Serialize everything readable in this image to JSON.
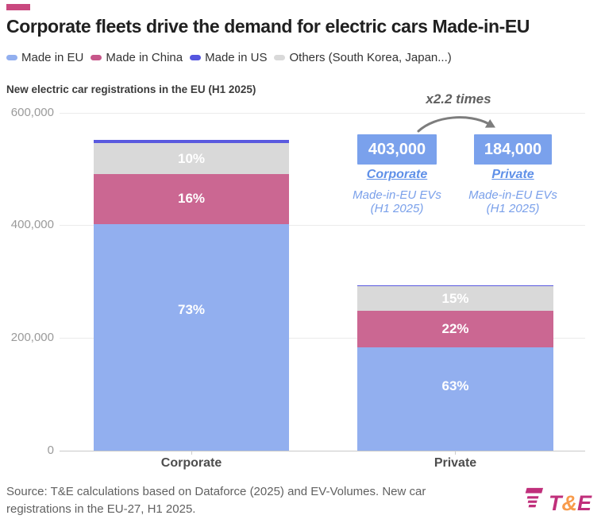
{
  "accent_color": "#C9487F",
  "title": "Corporate fleets drive the demand for electric cars Made-in-EU",
  "legend": {
    "items": [
      {
        "label": "Made in EU",
        "color": "#92AFEF"
      },
      {
        "label": "Made in China",
        "color": "#C7568A"
      },
      {
        "label": "Made in US",
        "color": "#5556DF"
      },
      {
        "label": "Others (South Korea, Japan...)",
        "color": "#D9D9D9"
      }
    ]
  },
  "chart_data": {
    "type": "bar",
    "stacked": true,
    "title": "New electric car registrations in the EU (H1 2025)",
    "categories": [
      "Corporate",
      "Private"
    ],
    "y_ticks": [
      "600,000",
      "400,000",
      "200,000",
      "0"
    ],
    "ylim": [
      0,
      600000
    ],
    "grid": true,
    "series": [
      {
        "name": "Made in EU",
        "color": "#92AFEF",
        "values": [
          403000,
          184000
        ],
        "pct": [
          "73%",
          "63%"
        ]
      },
      {
        "name": "Made in China",
        "color": "#CB6792",
        "values": [
          88000,
          64000
        ],
        "pct": [
          "16%",
          "22%"
        ]
      },
      {
        "name": "Others (South Korea, Japan...)",
        "color": "#D9D9D9",
        "values": [
          55000,
          44000
        ],
        "pct": [
          "10%",
          "15%"
        ]
      },
      {
        "name": "Made in US",
        "color": "#5A5ADF",
        "values": [
          6000,
          1500
        ],
        "pct": [
          null,
          null
        ]
      }
    ],
    "totals": [
      552000,
      293500
    ]
  },
  "annotation": {
    "multiplier": "x2.2 times",
    "box_color": "#7AA1EC",
    "boxes": [
      {
        "value": "403,000",
        "link": "Corporate",
        "caption": "Made-in-EU EVs",
        "caption2": "(H1 2025)"
      },
      {
        "value": "184,000",
        "link": "Private",
        "caption": "Made-in-EU EVs",
        "caption2": "(H1 2025)"
      }
    ]
  },
  "source": {
    "text": "Source: T&E calculations based on Dataforce (2025) and EV-Volumes. New car registrations in the EU-27, H1 2025."
  },
  "logo": {
    "t": "T",
    "amp": "&",
    "e": "E",
    "magenta": "#C02F7B",
    "orange": "#F89B4B"
  }
}
